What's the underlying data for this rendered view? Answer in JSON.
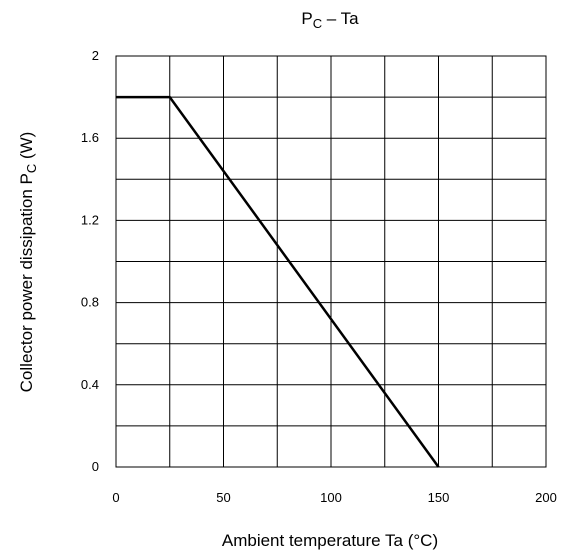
{
  "chart_data": {
    "type": "line",
    "title": [
      "P",
      "C",
      " – Ta"
    ],
    "x_label": "Ambient temperature   Ta   (°C)",
    "y_label": [
      "Collector power dissipation   P",
      "C",
      "   (W)"
    ],
    "x": [
      0,
      25,
      150
    ],
    "series": [
      {
        "values": [
          1.8,
          1.8,
          0
        ],
        "color": "#000000"
      }
    ],
    "xlim": [
      0,
      200
    ],
    "xticks": [
      0,
      50,
      100,
      150,
      200
    ],
    "ylim": [
      0,
      2
    ],
    "yticks": [
      0,
      0.4,
      0.8,
      1.2,
      1.6,
      2
    ],
    "grid": true
  }
}
